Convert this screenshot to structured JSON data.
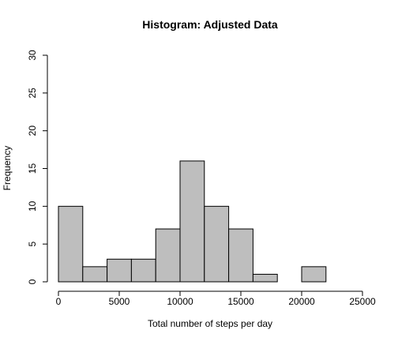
{
  "chart_data": {
    "type": "bar",
    "title": "Histogram: Adjusted Data",
    "xlabel": "Total number of steps per day",
    "ylabel": "Frequency",
    "bin_edges": [
      0,
      2000,
      4000,
      6000,
      8000,
      10000,
      12000,
      14000,
      16000,
      18000,
      20000,
      22000
    ],
    "values": [
      10,
      2,
      3,
      3,
      7,
      16,
      10,
      7,
      1,
      0,
      2
    ],
    "xlim": [
      0,
      25000
    ],
    "ylim": [
      0,
      30
    ],
    "x_ticks": [
      0,
      5000,
      10000,
      15000,
      20000,
      25000
    ],
    "y_ticks": [
      0,
      5,
      10,
      15,
      20,
      25,
      30
    ],
    "bar_color": "#bebebe",
    "grid": false
  }
}
